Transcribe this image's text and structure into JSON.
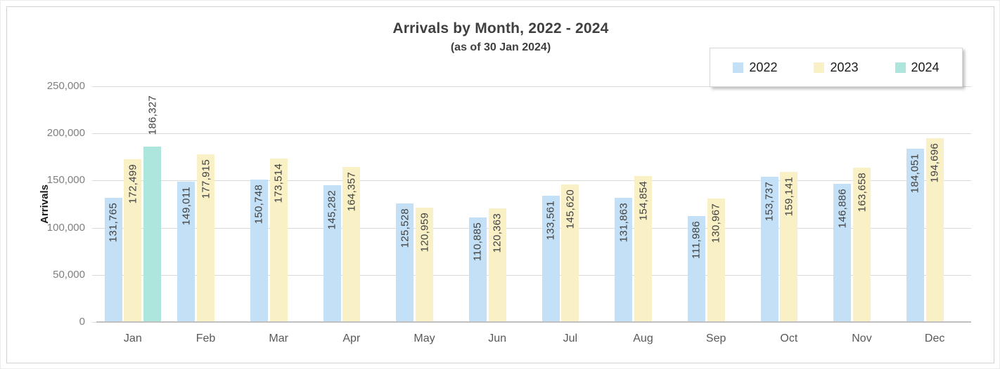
{
  "chart_data": {
    "type": "bar",
    "title": "Arrivals by Month, 2022 - 2024",
    "subtitle": "(as of 30 Jan 2024)",
    "ylabel": "Arrivals",
    "xlabel": "",
    "categories": [
      "Jan",
      "Feb",
      "Mar",
      "Apr",
      "May",
      "Jun",
      "Jul",
      "Aug",
      "Sep",
      "Oct",
      "Nov",
      "Dec"
    ],
    "series": [
      {
        "name": "2022",
        "color": "#c4e0f6",
        "values": [
          131765,
          149011,
          150748,
          145282,
          125528,
          110885,
          133561,
          131863,
          111986,
          153737,
          146886,
          184051
        ],
        "labels": [
          "131,765",
          "149,011",
          "150,748",
          "145,282",
          "125,528",
          "110,885",
          "133,561",
          "131,863",
          "111,986",
          "153,737",
          "146,886",
          "184,051"
        ],
        "label_placement": "inside-end"
      },
      {
        "name": "2023",
        "color": "#faf0c6",
        "values": [
          172499,
          177915,
          173514,
          164357,
          120959,
          120363,
          145620,
          154854,
          130967,
          159141,
          163658,
          194696
        ],
        "labels": [
          "172,499",
          "177,915",
          "173,514",
          "164,357",
          "120,959",
          "120,363",
          "145,620",
          "154,854",
          "130,967",
          "159,141",
          "163,658",
          "194,696"
        ],
        "label_placement": "inside-end"
      },
      {
        "name": "2024",
        "color": "#ace6dd",
        "values": [
          186327,
          null,
          null,
          null,
          null,
          null,
          null,
          null,
          null,
          null,
          null,
          null
        ],
        "labels": [
          "186,327",
          null,
          null,
          null,
          null,
          null,
          null,
          null,
          null,
          null,
          null,
          null
        ],
        "label_placement": "outside-end"
      }
    ],
    "ylim": [
      0,
      250000
    ],
    "yticks": [
      {
        "value": 0,
        "label": "0"
      },
      {
        "value": 50000,
        "label": "50,000"
      },
      {
        "value": 100000,
        "label": "100,000"
      },
      {
        "value": 150000,
        "label": "150,000"
      },
      {
        "value": 200000,
        "label": "200,000"
      },
      {
        "value": 250000,
        "label": "250,000"
      }
    ],
    "grid": true,
    "legend_position": "top-right",
    "colors": {
      "gridline": "#d9d9d9",
      "axis_line": "#c0c0c0",
      "y_tick_label": "#7f7f7f",
      "x_tick_label": "#595959",
      "data_label": "#404040",
      "title": "#3f3f3f"
    }
  }
}
